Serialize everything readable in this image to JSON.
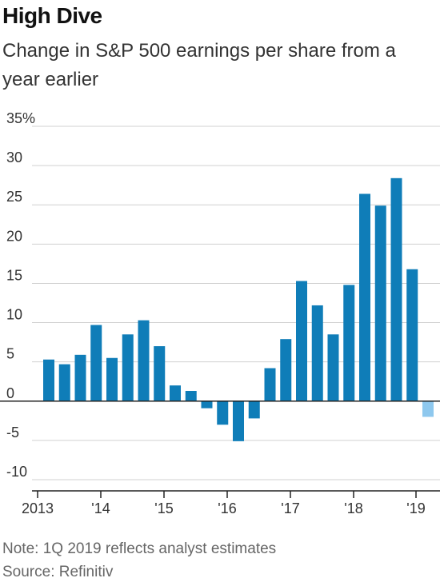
{
  "header": {
    "title": "High Dive",
    "subtitle": "Change in S&P 500 earnings per share from a year earlier"
  },
  "footer": {
    "note": "Note: 1Q 2019 reflects analyst estimates",
    "source": "Source: Refinitiv"
  },
  "colors": {
    "actual": "#0f7db8",
    "estimate": "#8ec8ee",
    "grid": "#d0d0d0",
    "zero_line": "#222222"
  },
  "chart_data": {
    "type": "bar",
    "title": "High Dive",
    "subtitle": "Change in S&P 500 earnings per share from a year earlier",
    "ylim": [
      -10,
      35
    ],
    "y_ticks": [
      -10,
      -5,
      0,
      5,
      10,
      15,
      20,
      25,
      30,
      35
    ],
    "y_tick_labels": [
      "-10",
      "-5",
      "0",
      "5",
      "10",
      "15",
      "20",
      "25",
      "30",
      "35%"
    ],
    "x_tick_labels": [
      "2013",
      "'14",
      "'15",
      "'16",
      "'17",
      "'18",
      "'19"
    ],
    "grid": true,
    "categories": [
      "1Q13",
      "2Q13",
      "3Q13",
      "4Q13",
      "1Q14",
      "2Q14",
      "3Q14",
      "4Q14",
      "1Q15",
      "2Q15",
      "3Q15",
      "4Q15",
      "1Q16",
      "2Q16",
      "3Q16",
      "4Q16",
      "1Q17",
      "2Q17",
      "3Q17",
      "4Q17",
      "1Q18",
      "2Q18",
      "3Q18",
      "4Q18",
      "1Q19"
    ],
    "values": [
      5.3,
      4.7,
      5.9,
      9.7,
      5.5,
      8.5,
      10.3,
      7.0,
      2.0,
      1.3,
      -0.9,
      -3.0,
      -5.1,
      -2.2,
      4.2,
      7.9,
      15.3,
      12.2,
      8.5,
      14.8,
      26.4,
      24.9,
      28.4,
      16.8,
      -2.0
    ],
    "estimate": [
      false,
      false,
      false,
      false,
      false,
      false,
      false,
      false,
      false,
      false,
      false,
      false,
      false,
      false,
      false,
      false,
      false,
      false,
      false,
      false,
      false,
      false,
      false,
      false,
      true
    ]
  }
}
